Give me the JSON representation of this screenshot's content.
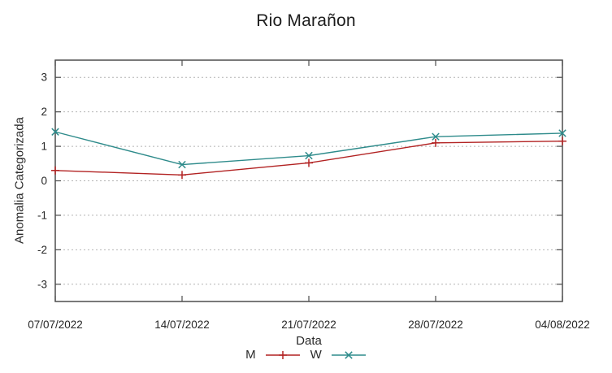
{
  "chart_data": {
    "type": "line",
    "title": "Rio Marañon",
    "xlabel": "Data",
    "ylabel": "Anomalia Categorizada",
    "categories": [
      "07/07/2022",
      "14/07/2022",
      "21/07/2022",
      "28/07/2022",
      "04/08/2022"
    ],
    "yticks": [
      -3,
      -2,
      -1,
      0,
      1,
      2,
      3
    ],
    "ylim": [
      -3.5,
      3.5
    ],
    "grid": "horizontal-dotted",
    "legend_position": "bottom-center",
    "series": [
      {
        "name": "M",
        "color": "#b22222",
        "marker": "plus",
        "values": [
          0.3,
          0.17,
          0.52,
          1.1,
          1.15
        ]
      },
      {
        "name": "W",
        "color": "#2e8b8b",
        "marker": "cross",
        "values": [
          1.42,
          0.47,
          0.73,
          1.28,
          1.38
        ]
      }
    ]
  }
}
